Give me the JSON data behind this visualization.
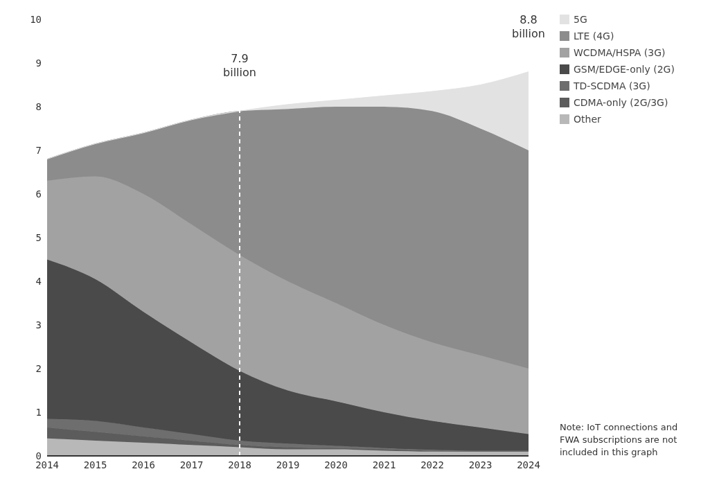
{
  "chart_data": {
    "type": "area",
    "stacked": true,
    "x": [
      2014,
      2015,
      2016,
      2017,
      2018,
      2019,
      2020,
      2021,
      2022,
      2023,
      2024
    ],
    "series": [
      {
        "name": "Other",
        "color": "#b8b8b8",
        "values": [
          0.4,
          0.35,
          0.3,
          0.25,
          0.2,
          0.15,
          0.15,
          0.12,
          0.1,
          0.1,
          0.1
        ]
      },
      {
        "name": "CDMA-only (2G/3G)",
        "color": "#5c5c5c",
        "values": [
          0.25,
          0.2,
          0.15,
          0.1,
          0.05,
          0.05,
          0.03,
          0.03,
          0.02,
          0.01,
          0.01
        ]
      },
      {
        "name": "TD-SCDMA (3G)",
        "color": "#6e6e6e",
        "values": [
          0.2,
          0.25,
          0.2,
          0.15,
          0.1,
          0.08,
          0.05,
          0.03,
          0.02,
          0.01,
          0.01
        ]
      },
      {
        "name": "GSM/EDGE-only (2G)",
        "color": "#4a4a4a",
        "values": [
          3.65,
          3.25,
          2.65,
          2.1,
          1.6,
          1.22,
          1.02,
          0.82,
          0.66,
          0.53,
          0.38
        ]
      },
      {
        "name": "WCDMA/HSPA (3G)",
        "color": "#a2a2a2",
        "values": [
          1.8,
          2.35,
          2.7,
          2.7,
          2.65,
          2.5,
          2.25,
          2.0,
          1.8,
          1.65,
          1.5
        ]
      },
      {
        "name": "LTE (4G)",
        "color": "#8c8c8c",
        "values": [
          0.5,
          0.75,
          1.4,
          2.4,
          3.3,
          3.95,
          4.5,
          5.0,
          5.3,
          5.2,
          5.0
        ]
      },
      {
        "name": "5G",
        "color": "#e2e2e2",
        "values": [
          0,
          0,
          0,
          0,
          0,
          0.1,
          0.15,
          0.25,
          0.45,
          1.0,
          1.8
        ]
      }
    ],
    "xlim": [
      2014,
      2024
    ],
    "xticks": [
      2014,
      2015,
      2016,
      2017,
      2018,
      2019,
      2020,
      2021,
      2022,
      2023,
      2024
    ],
    "ylim": [
      0,
      10
    ],
    "yticks": [
      0,
      1,
      2,
      3,
      4,
      5,
      6,
      7,
      8,
      9,
      10
    ],
    "ref_lines": [
      {
        "axis": "x",
        "value": 2018,
        "color": "#ffffff",
        "line_style": "dashed"
      }
    ],
    "annotations": [
      {
        "text": "7.9 billion",
        "x": 2018,
        "y": 7.9
      },
      {
        "text": "8.8 billion",
        "x": 2024,
        "y": 8.8
      },
      "Note: IoT connections and FWA subscriptions are not included in this graph"
    ],
    "legend": "top right",
    "grid": false
  }
}
